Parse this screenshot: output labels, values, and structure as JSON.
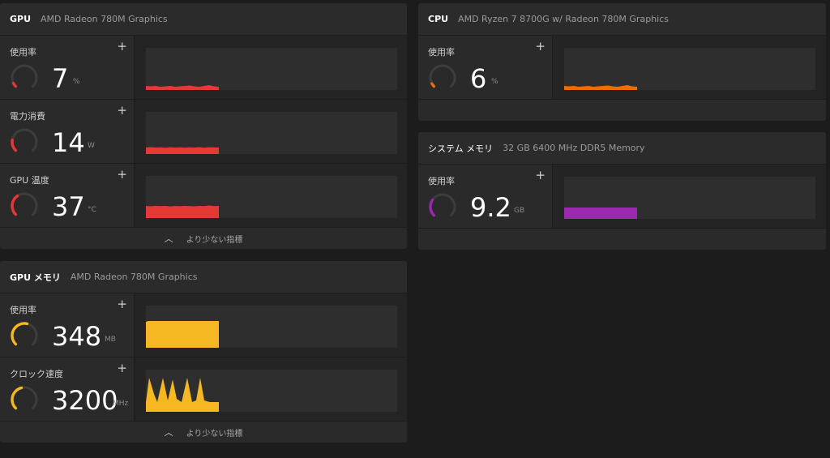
{
  "gpu_panel": {
    "title": "GPU",
    "subtitle": "AMD Radeon 780M Graphics",
    "footer_label": "より少ない指標",
    "rows": [
      {
        "label": "使用率",
        "value": "7",
        "unit": "%",
        "fraction": 0.07,
        "color": "#e53935"
      },
      {
        "label": "電力消費",
        "value": "14",
        "unit": "W",
        "fraction": 0.2,
        "color": "#e53935"
      },
      {
        "label": "GPU 温度",
        "value": "37",
        "unit": "°C",
        "fraction": 0.37,
        "color": "#e53935"
      }
    ]
  },
  "cpu_panel": {
    "title": "CPU",
    "subtitle": "AMD Ryzen 7 8700G w/ Radeon 780M Graphics",
    "rows": [
      {
        "label": "使用率",
        "value": "6",
        "unit": "%",
        "fraction": 0.06,
        "color": "#ef6c00"
      }
    ]
  },
  "sysmem_panel": {
    "title": "システム メモリ",
    "subtitle": "32 GB 6400 MHz DDR5 Memory",
    "rows": [
      {
        "label": "使用率",
        "value": "9.2",
        "unit": "GB",
        "fraction": 0.29,
        "color": "#9c27b0"
      }
    ]
  },
  "gpumem_panel": {
    "title": "GPU メモリ",
    "subtitle": "AMD Radeon 780M Graphics",
    "footer_label": "より少ない指標",
    "rows": [
      {
        "label": "使用率",
        "value": "348",
        "unit": "MB",
        "fraction": 0.55,
        "color": "#f5b823"
      },
      {
        "label": "クロック速度",
        "value": "3200",
        "unit": "MHz",
        "fraction": 0.45,
        "color": "#f5b823"
      }
    ]
  },
  "icons": {
    "add": "plus-icon",
    "collapse": "chevron-up-icon"
  }
}
